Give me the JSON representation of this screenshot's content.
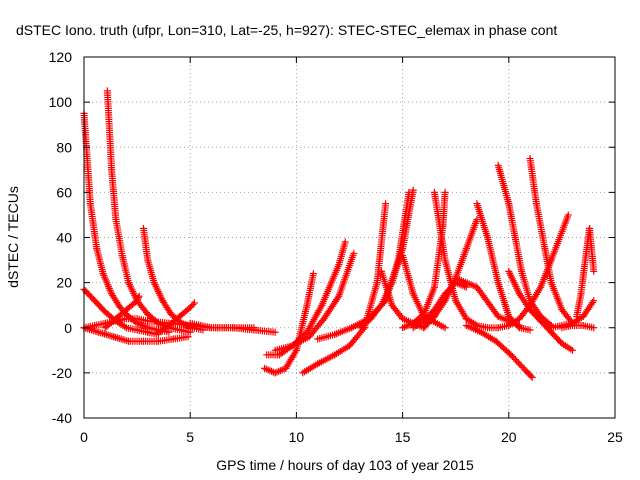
{
  "chart_data": {
    "type": "scatter",
    "title": "dSTEC Iono. truth (ufpr, Lon=310, Lat=-25, h=927): STEC-STEC_elemax in phase cont",
    "xlabel": "GPS time / hours of day 103 of year 2015",
    "ylabel": "dSTEC  / TECUs",
    "xlim": [
      0,
      25
    ],
    "ylim": [
      -40,
      120
    ],
    "xticks": [
      0,
      5,
      10,
      15,
      20,
      25
    ],
    "yticks": [
      -40,
      -20,
      0,
      20,
      40,
      60,
      80,
      100,
      120
    ],
    "grid": true,
    "marker": "+",
    "color": "#ff0000",
    "series": [
      {
        "x": [
          0.0,
          0.3,
          0.6,
          0.9,
          1.3,
          1.7,
          2.1,
          2.5,
          3.0,
          3.5,
          4.0
        ],
        "y": [
          95,
          55,
          35,
          24,
          15,
          9,
          5,
          2,
          0,
          -1,
          -2
        ]
      },
      {
        "x": [
          1.1,
          1.3,
          1.5,
          1.8,
          2.1,
          2.5,
          3.0,
          3.5,
          4.0,
          4.5,
          5.0
        ],
        "y": [
          105,
          70,
          48,
          32,
          20,
          12,
          6,
          2,
          0,
          -1,
          -2
        ]
      },
      {
        "x": [
          2.8,
          3.0,
          3.3,
          3.7,
          4.1,
          4.6,
          5.1,
          5.6
        ],
        "y": [
          44,
          30,
          20,
          12,
          6,
          2,
          0,
          -1
        ]
      },
      {
        "x": [
          0.0,
          0.5,
          1.0,
          1.5,
          2.0,
          2.5,
          3.0,
          3.5
        ],
        "y": [
          17,
          12,
          7,
          3,
          0,
          -1,
          -2,
          -3
        ]
      },
      {
        "x": [
          0.0,
          0.5,
          1.0,
          1.5,
          2.0,
          2.5,
          3.0,
          4.0,
          5.0,
          6.0,
          7.0,
          8.0
        ],
        "y": [
          0,
          1,
          2,
          3,
          4,
          4,
          3,
          2,
          1,
          0,
          0,
          0
        ]
      },
      {
        "x": [
          0.0,
          0.7,
          1.4,
          2.1,
          2.8,
          3.5,
          4.2,
          4.9
        ],
        "y": [
          0,
          -2,
          -4,
          -6,
          -6,
          -6,
          -5,
          -4
        ]
      },
      {
        "x": [
          1.0,
          1.5,
          2.0,
          2.5,
          2.6
        ],
        "y": [
          0,
          4,
          8,
          12,
          14
        ]
      },
      {
        "x": [
          3.5,
          4.0,
          4.5,
          5.0,
          5.2
        ],
        "y": [
          -2,
          1,
          5,
          9,
          11
        ]
      },
      {
        "x": [
          5.0,
          5.5,
          6.0,
          7.0,
          8.0,
          9.0
        ],
        "y": [
          2,
          1,
          0,
          0,
          -1,
          -2
        ]
      },
      {
        "x": [
          8.5,
          9.0,
          9.5,
          10.0,
          10.5,
          10.8
        ],
        "y": [
          -18,
          -20,
          -18,
          -10,
          10,
          24
        ]
      },
      {
        "x": [
          8.6,
          9.2,
          9.8,
          10.5,
          11.2,
          12.0,
          12.3
        ],
        "y": [
          -12,
          -12,
          -8,
          -2,
          10,
          28,
          38
        ]
      },
      {
        "x": [
          9.0,
          9.8,
          10.6,
          11.3,
          12.0,
          12.7
        ],
        "y": [
          -10,
          -8,
          -4,
          4,
          14,
          33
        ]
      },
      {
        "x": [
          10.3,
          11.0,
          11.8,
          12.5,
          13.2,
          13.8,
          14.2
        ],
        "y": [
          -20,
          -16,
          -12,
          -8,
          0,
          20,
          55
        ]
      },
      {
        "x": [
          11.0,
          11.8,
          12.6,
          13.4,
          14.2,
          14.8,
          15.3
        ],
        "y": [
          -5,
          -3,
          0,
          4,
          12,
          30,
          60
        ]
      },
      {
        "x": [
          13.0,
          13.5,
          14.0,
          14.5,
          15.0,
          15.5
        ],
        "y": [
          0,
          4,
          10,
          20,
          35,
          61
        ]
      },
      {
        "x": [
          15.0,
          15.5,
          16.0,
          16.5,
          16.9,
          17.0
        ],
        "y": [
          0,
          2,
          6,
          18,
          45,
          60
        ]
      },
      {
        "x": [
          14.0,
          14.5,
          15.0,
          16.0
        ],
        "y": [
          25,
          10,
          4,
          0
        ]
      },
      {
        "x": [
          15.0,
          15.5,
          16.0,
          17.0
        ],
        "y": [
          32,
          15,
          5,
          0
        ]
      },
      {
        "x": [
          16.5,
          17.0,
          17.5,
          18.0,
          18.5,
          19.0
        ],
        "y": [
          60,
          30,
          12,
          4,
          1,
          0
        ]
      },
      {
        "x": [
          16.0,
          16.5,
          17.0,
          17.5,
          18.0,
          18.5
        ],
        "y": [
          0,
          5,
          12,
          22,
          35,
          48
        ]
      },
      {
        "x": [
          15.5,
          16.0,
          16.5,
          17.0,
          17.5,
          18.0
        ],
        "y": [
          0,
          3,
          8,
          15,
          20,
          18
        ]
      },
      {
        "x": [
          17.5,
          18.5,
          19.5,
          20.5
        ],
        "y": [
          22,
          18,
          5,
          1
        ]
      },
      {
        "x": [
          18.5,
          19.0,
          19.5,
          20.0,
          20.5,
          21.0
        ],
        "y": [
          55,
          40,
          20,
          5,
          0,
          -1
        ]
      },
      {
        "x": [
          19.5,
          20.0,
          20.3,
          20.6,
          21.0,
          21.5,
          22.0
        ],
        "y": [
          72,
          55,
          40,
          25,
          12,
          5,
          1
        ]
      },
      {
        "x": [
          21.0,
          21.3,
          21.7,
          22.0,
          22.5,
          23.0
        ],
        "y": [
          75,
          55,
          35,
          20,
          8,
          2
        ]
      },
      {
        "x": [
          18.0,
          18.7,
          19.4,
          20.1,
          20.8,
          21.1
        ],
        "y": [
          1,
          -2,
          -6,
          -12,
          -19,
          -22
        ]
      },
      {
        "x": [
          19.0,
          19.5,
          20.0,
          20.5,
          21.0,
          21.5,
          22.0,
          22.8
        ],
        "y": [
          0,
          0,
          1,
          4,
          10,
          18,
          30,
          50
        ]
      },
      {
        "x": [
          20.0,
          20.5,
          21.0,
          21.5,
          22.0,
          22.5,
          23.0
        ],
        "y": [
          25,
          15,
          8,
          3,
          -2,
          -7,
          -10
        ]
      },
      {
        "x": [
          22.0,
          22.5,
          23.0,
          23.5,
          24.0
        ],
        "y": [
          0,
          1,
          2,
          5,
          12
        ]
      },
      {
        "x": [
          23.2,
          23.4,
          23.6,
          23.8,
          24.0
        ],
        "y": [
          5,
          15,
          30,
          44,
          25
        ]
      },
      {
        "x": [
          22.5,
          23.0,
          23.5,
          24.0
        ],
        "y": [
          0,
          1,
          1,
          0
        ]
      }
    ]
  }
}
